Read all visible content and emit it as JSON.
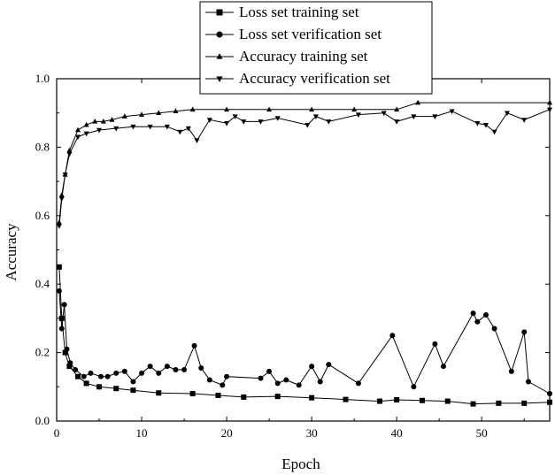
{
  "chart_data": {
    "type": "line",
    "xlabel": "Epoch",
    "ylabel": "Accuracy",
    "xlim": [
      0,
      58
    ],
    "ylim": [
      0,
      1.0
    ],
    "x_ticks": [
      "0",
      "10",
      "20",
      "30",
      "40",
      "50"
    ],
    "y_ticks": [
      "0.0",
      "0.2",
      "0.4",
      "0.6",
      "0.8",
      "1.0"
    ],
    "grid": false,
    "legend_position": "top-center",
    "series": [
      {
        "name": "Loss set training set",
        "marker": "square",
        "x": [
          0.3,
          0.6,
          1,
          1.5,
          2.5,
          3.5,
          5,
          7,
          9,
          12,
          16,
          19,
          22,
          26,
          30,
          34,
          38,
          40,
          43,
          46,
          49,
          52,
          55,
          58
        ],
        "y": [
          0.45,
          0.3,
          0.2,
          0.16,
          0.13,
          0.11,
          0.1,
          0.095,
          0.09,
          0.082,
          0.08,
          0.075,
          0.07,
          0.072,
          0.068,
          0.063,
          0.058,
          0.062,
          0.06,
          0.058,
          0.05,
          0.052,
          0.052,
          0.055
        ]
      },
      {
        "name": "Loss set verification set",
        "marker": "circle",
        "x": [
          0.3,
          0.6,
          0.9,
          1.2,
          1.6,
          2.2,
          3.2,
          4,
          5.2,
          6,
          7,
          8,
          9,
          10,
          11,
          12,
          13,
          14,
          15,
          16.2,
          17,
          18,
          19.5,
          20,
          24,
          25,
          26,
          27,
          28.5,
          30,
          31,
          32,
          35.5,
          39.5,
          42,
          44.5,
          45.5,
          49,
          49.5,
          50.5,
          51.5,
          53.5,
          55,
          55.5,
          58
        ],
        "y": [
          0.38,
          0.27,
          0.34,
          0.21,
          0.17,
          0.15,
          0.13,
          0.14,
          0.13,
          0.13,
          0.14,
          0.145,
          0.115,
          0.14,
          0.16,
          0.14,
          0.16,
          0.15,
          0.15,
          0.22,
          0.155,
          0.12,
          0.105,
          0.13,
          0.125,
          0.145,
          0.11,
          0.12,
          0.105,
          0.16,
          0.115,
          0.165,
          0.11,
          0.25,
          0.1,
          0.225,
          0.16,
          0.315,
          0.29,
          0.31,
          0.27,
          0.145,
          0.26,
          0.115,
          0.08
        ]
      },
      {
        "name": "Accuracy training set",
        "marker": "triangle-up",
        "x": [
          0.3,
          0.6,
          1,
          1.5,
          2.5,
          3.5,
          4.5,
          5.5,
          6.5,
          8,
          10,
          12,
          14,
          16,
          20,
          25,
          30,
          35,
          40,
          42.5,
          58
        ],
        "y": [
          0.58,
          0.66,
          0.72,
          0.79,
          0.85,
          0.865,
          0.875,
          0.875,
          0.88,
          0.89,
          0.895,
          0.9,
          0.905,
          0.91,
          0.91,
          0.91,
          0.91,
          0.91,
          0.91,
          0.93,
          0.93
        ]
      },
      {
        "name": "Accuracy verification set",
        "marker": "triangle-down",
        "x": [
          0.3,
          0.6,
          1,
          1.5,
          2.5,
          3.5,
          5,
          7,
          9,
          11,
          13,
          14.5,
          15.5,
          16.5,
          18,
          20,
          21,
          22,
          24,
          26,
          29.5,
          30.5,
          32,
          35.5,
          38.5,
          40,
          42,
          44.5,
          46.5,
          49.5,
          50.5,
          51.5,
          53,
          55,
          58
        ],
        "y": [
          0.57,
          0.65,
          0.72,
          0.78,
          0.83,
          0.84,
          0.85,
          0.855,
          0.86,
          0.86,
          0.86,
          0.845,
          0.855,
          0.82,
          0.88,
          0.87,
          0.89,
          0.875,
          0.875,
          0.885,
          0.865,
          0.89,
          0.875,
          0.895,
          0.9,
          0.875,
          0.89,
          0.89,
          0.905,
          0.87,
          0.865,
          0.845,
          0.9,
          0.88,
          0.91
        ]
      }
    ]
  }
}
